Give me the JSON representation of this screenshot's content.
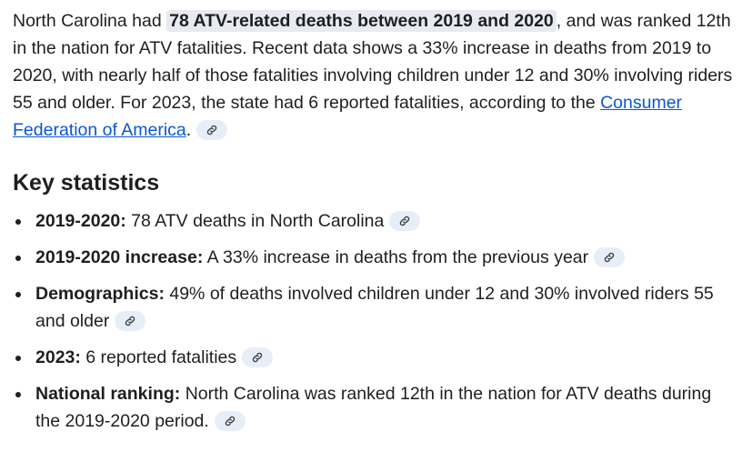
{
  "intro": {
    "before": "North Carolina had ",
    "highlight": "78 ATV-related deaths between 2019 and 2020",
    "after": ", and was ranked 12th in the nation for ATV fatalities. Recent data shows a 33% increase in deaths from 2019 to 2020, with nearly half of those fatalities involving children under 12 and 30% involving riders 55 and older. For 2023, the state had 6 reported fatalities, according to the ",
    "link_text": "Consumer Federation of America",
    "end": "."
  },
  "section": {
    "heading": "Key statistics"
  },
  "stats": [
    {
      "label": "2019-2020:",
      "text": " 78 ATV deaths in North Carolina"
    },
    {
      "label": "2019-2020 increase:",
      "text": " A 33% increase in deaths from the previous year"
    },
    {
      "label": "Demographics:",
      "text": " 49% of deaths involved children under 12 and 30% involved riders 55 and older"
    },
    {
      "label": "2023:",
      "text": " 6 reported fatalities"
    },
    {
      "label": "National ranking:",
      "text": " North Carolina was ranked 12th in the nation for ATV deaths during the 2019-2020 period."
    }
  ],
  "icons": {
    "source": "link-icon"
  },
  "colors": {
    "link": "#0b57d0",
    "chip_bg": "#e8eef7",
    "highlight_bg": "#e7ebf1",
    "text": "#1f1f1f"
  }
}
